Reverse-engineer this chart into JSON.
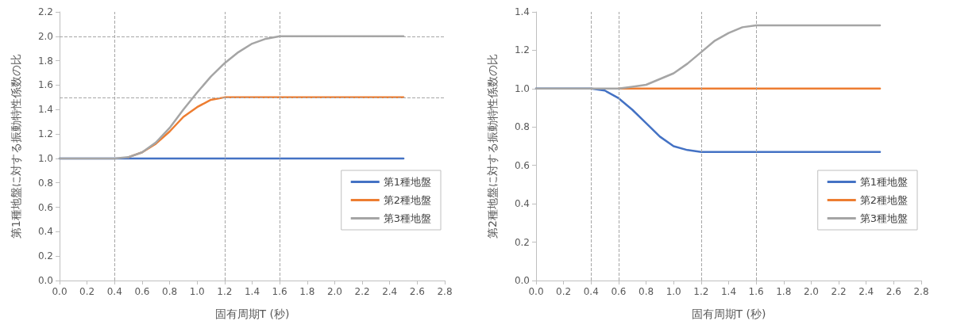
{
  "chart_data": [
    {
      "type": "line",
      "xlabel": "固有周期T (秒)",
      "ylabel": "第1種地盤に対する振動特性係数の比",
      "xlim": [
        0,
        2.8
      ],
      "xticks": [
        {
          "value": 0,
          "label": "0.0"
        },
        0.2,
        0.4,
        0.6,
        0.8,
        {
          "value": 1,
          "label": "1.0"
        },
        1.2,
        1.4,
        1.6,
        1.8,
        {
          "value": 2,
          "label": "2.0"
        },
        2.2,
        2.4,
        2.6,
        2.8
      ],
      "ylim": [
        0,
        2.2
      ],
      "yticks": [
        {
          "value": 0,
          "label": "0.0"
        },
        0.2,
        0.4,
        0.6,
        0.8,
        {
          "value": 1,
          "label": "1.0"
        },
        1.2,
        1.4,
        1.6,
        1.8,
        {
          "value": 2,
          "label": "2.0"
        },
        2.2
      ],
      "grid": false,
      "legend": "right",
      "marker": "none",
      "line_style": "solid",
      "x": [
        0,
        0.4,
        0.5,
        0.6,
        0.7,
        0.8,
        0.9,
        1.0,
        1.1,
        1.2,
        1.3,
        1.4,
        1.5,
        1.6,
        2.5
      ],
      "series": [
        {
          "name": "第1種地盤",
          "color": "#4472c4",
          "values": [
            1,
            1,
            1,
            1,
            1,
            1,
            1,
            1,
            1,
            1,
            1,
            1,
            1,
            1,
            1
          ]
        },
        {
          "name": "第2種地盤",
          "color": "#ed7d31",
          "values": [
            null,
            null,
            1.01,
            1.05,
            1.12,
            1.22,
            1.34,
            1.42,
            1.48,
            1.5,
            1.5,
            1.5,
            1.5,
            1.5,
            1.5
          ]
        },
        {
          "name": "第3種地盤",
          "color": "#a5a5a5",
          "values": [
            1,
            1,
            1.01,
            1.05,
            1.13,
            1.25,
            1.4,
            1.54,
            1.67,
            1.78,
            1.87,
            1.94,
            1.98,
            2,
            2
          ]
        }
      ],
      "ref_lines": [
        {
          "axis": "x",
          "value": 0.4,
          "color": "#a6a6a6",
          "line_style": "dashed"
        },
        {
          "axis": "x",
          "value": 1.2,
          "color": "#a6a6a6",
          "line_style": "dashed"
        },
        {
          "axis": "x",
          "value": 1.6,
          "color": "#a6a6a6",
          "line_style": "dashed"
        },
        {
          "axis": "y",
          "value": 1.5,
          "color": "#a6a6a6",
          "line_style": "dashed"
        },
        {
          "axis": "y",
          "value": 2,
          "label": null,
          "color": "#a6a6a6",
          "line_style": "dashed"
        }
      ]
    },
    {
      "type": "line",
      "xlabel": "固有周期T (秒)",
      "ylabel": "第2種地盤に対する振動特性係数の比",
      "xlim": [
        0,
        2.8
      ],
      "xticks": [
        {
          "value": 0,
          "label": "0.0"
        },
        0.2,
        0.4,
        0.6,
        0.8,
        {
          "value": 1,
          "label": "1.0"
        },
        1.2,
        1.4,
        1.6,
        1.8,
        {
          "value": 2,
          "label": "2.0"
        },
        2.2,
        2.4,
        2.6,
        2.8
      ],
      "ylim": [
        0,
        1.4
      ],
      "yticks": [
        {
          "value": 0,
          "label": "0.0"
        },
        0.2,
        0.4,
        0.6,
        0.8,
        {
          "value": 1,
          "label": "1.0"
        },
        1.2,
        1.4
      ],
      "grid": false,
      "legend": "right",
      "marker": "none",
      "line_style": "solid",
      "x": [
        0,
        0.4,
        0.5,
        0.6,
        0.7,
        0.8,
        0.9,
        1.0,
        1.1,
        1.2,
        1.3,
        1.4,
        1.5,
        1.6,
        2.5
      ],
      "series": [
        {
          "name": "第1種地盤",
          "color": "#4472c4",
          "values": [
            1,
            1,
            0.99,
            0.95,
            0.89,
            0.82,
            0.75,
            0.7,
            0.68,
            0.67,
            0.67,
            0.67,
            0.67,
            0.67,
            0.67
          ]
        },
        {
          "name": "第2種地盤",
          "color": "#ed7d31",
          "values": [
            null,
            null,
            null,
            1,
            1,
            1,
            1,
            1,
            1,
            1,
            1,
            1,
            1,
            1,
            1
          ]
        },
        {
          "name": "第3種地盤",
          "color": "#a5a5a5",
          "values": [
            1,
            1,
            1,
            1,
            1.01,
            1.02,
            1.05,
            1.08,
            1.13,
            1.19,
            1.25,
            1.29,
            1.32,
            1.33,
            1.33
          ]
        }
      ],
      "ref_lines": [
        {
          "axis": "x",
          "value": 0.4,
          "color": "#a6a6a6",
          "line_style": "dashed"
        },
        {
          "axis": "x",
          "value": 0.6,
          "color": "#a6a6a6",
          "line_style": "dashed"
        },
        {
          "axis": "x",
          "value": 1.2,
          "color": "#a6a6a6",
          "line_style": "dashed"
        },
        {
          "axis": "x",
          "value": 1.6,
          "color": "#a6a6a6",
          "line_style": "dashed"
        }
      ]
    }
  ]
}
